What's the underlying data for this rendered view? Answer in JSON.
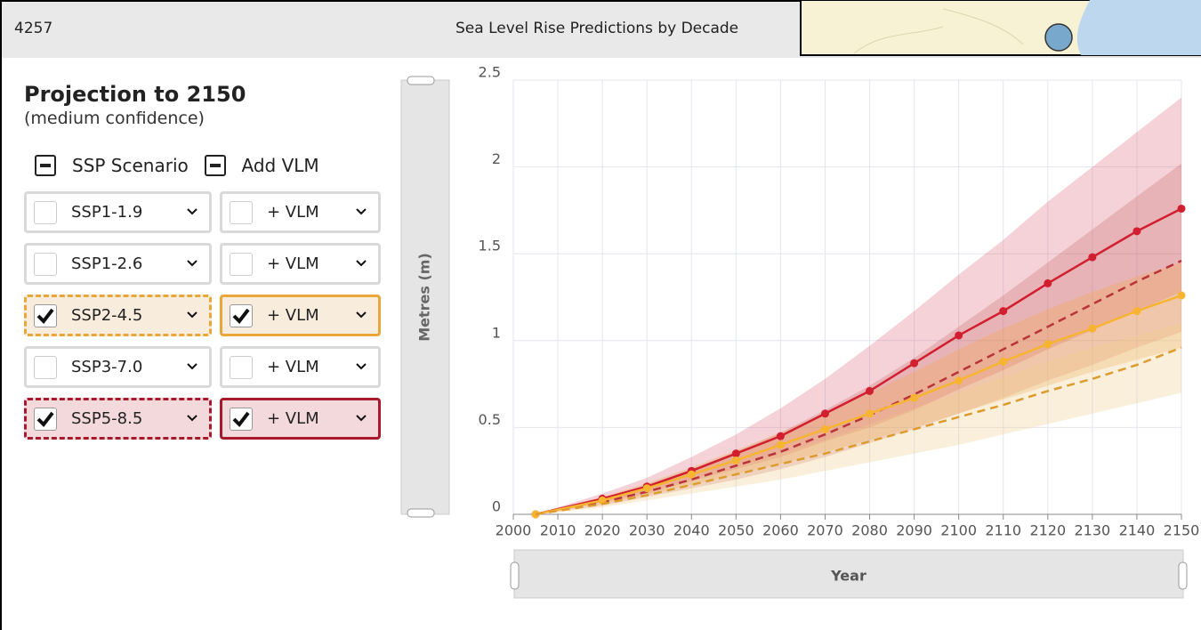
{
  "header": {
    "id": "4257",
    "title": "Sea Level Rise Predictions by Decade"
  },
  "panel": {
    "title": "Projection to 2150",
    "subtitle": "(medium confidence)",
    "columns": [
      "SSP Scenario",
      "Add VLM"
    ],
    "rows": [
      {
        "scenario": "SSP1-1.9",
        "vlm": "+ VLM",
        "checked": false,
        "vlm_checked": false
      },
      {
        "scenario": "SSP1-2.6",
        "vlm": "+ VLM",
        "checked": false,
        "vlm_checked": false
      },
      {
        "scenario": "SSP2-4.5",
        "vlm": "+ VLM",
        "checked": true,
        "vlm_checked": true,
        "color": "#e9a63a",
        "background": "#f8ecdc"
      },
      {
        "scenario": "SSP3-7.0",
        "vlm": "+ VLM",
        "checked": false,
        "vlm_checked": false
      },
      {
        "scenario": "SSP5-8.5",
        "vlm": "+ VLM",
        "checked": true,
        "vlm_checked": true,
        "color": "#a8192c",
        "background": "#f3d9dc"
      }
    ]
  },
  "chart_data": {
    "type": "line",
    "y_label": "Metres (m)",
    "x_label": "Year",
    "x": [
      2005,
      2020,
      2030,
      2040,
      2050,
      2060,
      2070,
      2080,
      2090,
      2100,
      2110,
      2120,
      2130,
      2140,
      2150
    ],
    "xlim": [
      2000,
      2150
    ],
    "xticks": [
      2000,
      2010,
      2020,
      2030,
      2040,
      2050,
      2060,
      2070,
      2080,
      2090,
      2100,
      2110,
      2120,
      2130,
      2140,
      2150
    ],
    "ylim": [
      0,
      2.5
    ],
    "yticks": [
      0,
      0.5,
      1,
      1.5,
      2,
      2.5
    ],
    "grid": true,
    "series": [
      {
        "color": "#d11f2f",
        "dashed": false,
        "markers": true,
        "band_color": "rgba(214,80,105,0.26)",
        "values": [
          0,
          0.09,
          0.16,
          0.25,
          0.35,
          0.45,
          0.58,
          0.71,
          0.87,
          1.03,
          1.17,
          1.33,
          1.48,
          1.63,
          1.76
        ],
        "low": [
          0,
          0.07,
          0.12,
          0.19,
          0.26,
          0.33,
          0.42,
          0.5,
          0.6,
          0.72,
          0.83,
          0.95,
          1.06,
          1.17,
          1.28
        ],
        "high": [
          0,
          0.12,
          0.21,
          0.33,
          0.46,
          0.61,
          0.78,
          0.97,
          1.17,
          1.38,
          1.58,
          1.8,
          2.0,
          2.2,
          2.4
        ]
      },
      {
        "color": "#b8333a",
        "dashed": true,
        "markers": false,
        "band_color": "rgba(190,70,70,0.22)",
        "values": [
          0,
          0.07,
          0.13,
          0.2,
          0.28,
          0.36,
          0.46,
          0.57,
          0.69,
          0.82,
          0.95,
          1.08,
          1.21,
          1.34,
          1.46
        ],
        "low": [
          0,
          0.05,
          0.1,
          0.15,
          0.2,
          0.26,
          0.33,
          0.41,
          0.49,
          0.58,
          0.67,
          0.77,
          0.86,
          0.96,
          1.05
        ],
        "high": [
          0,
          0.09,
          0.17,
          0.26,
          0.36,
          0.47,
          0.6,
          0.74,
          0.9,
          1.08,
          1.26,
          1.45,
          1.64,
          1.83,
          2.02
        ]
      },
      {
        "color": "#f7b431",
        "dashed": false,
        "markers": true,
        "band_color": "rgba(240,165,70,0.3)",
        "values": [
          0,
          0.08,
          0.15,
          0.23,
          0.31,
          0.4,
          0.49,
          0.58,
          0.67,
          0.77,
          0.88,
          0.98,
          1.07,
          1.17,
          1.26
        ],
        "low": [
          0,
          0.06,
          0.11,
          0.17,
          0.23,
          0.29,
          0.36,
          0.43,
          0.5,
          0.58,
          0.66,
          0.74,
          0.82,
          0.89,
          0.96
        ],
        "high": [
          0,
          0.1,
          0.18,
          0.27,
          0.37,
          0.47,
          0.58,
          0.7,
          0.82,
          0.95,
          1.07,
          1.18,
          1.28,
          1.37,
          1.45
        ]
      },
      {
        "color": "#dc9b2d",
        "dashed": true,
        "markers": false,
        "band_color": "rgba(240,205,140,0.32)",
        "values": [
          0,
          0.06,
          0.11,
          0.17,
          0.23,
          0.29,
          0.35,
          0.42,
          0.49,
          0.56,
          0.63,
          0.71,
          0.78,
          0.86,
          0.96
        ],
        "low": [
          0,
          0.04,
          0.08,
          0.12,
          0.16,
          0.2,
          0.25,
          0.3,
          0.35,
          0.4,
          0.46,
          0.52,
          0.58,
          0.64,
          0.7
        ],
        "high": [
          0,
          0.07,
          0.13,
          0.2,
          0.27,
          0.35,
          0.43,
          0.52,
          0.61,
          0.7,
          0.79,
          0.88,
          0.96,
          1.03,
          1.1
        ]
      }
    ]
  }
}
